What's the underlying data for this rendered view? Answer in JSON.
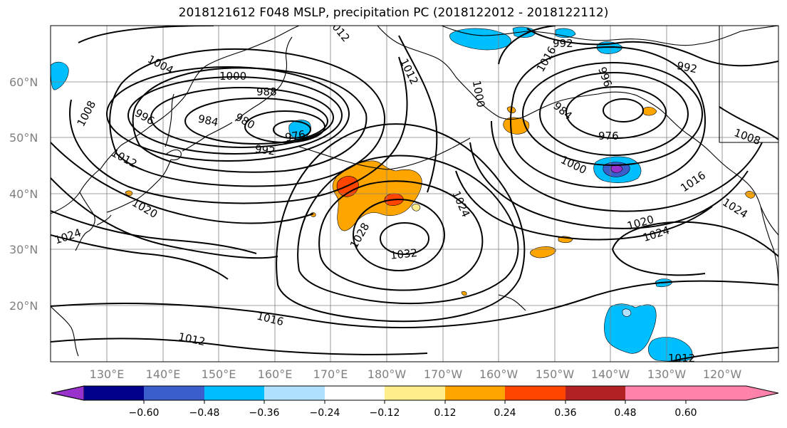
{
  "title": "2018121612 F048 MSLP, precipitation PC (2018122012 - 2018122112)",
  "lat_labels": [
    "60°N",
    "50°N",
    "40°N",
    "30°N",
    "20°N"
  ],
  "lon_labels": [
    "130°E",
    "140°E",
    "150°E",
    "160°E",
    "170°E",
    "180°W",
    "170°W",
    "160°W",
    "150°W",
    "140°W",
    "130°W",
    "120°W"
  ],
  "colorbar": {
    "colors": [
      "#9932cc",
      "#00008b",
      "#3a5fcd",
      "#00bfff",
      "#b0e2ff",
      "#ffffff",
      "#ffec8b",
      "#ffa500",
      "#ff4500",
      "#b22222",
      "#ff82ab"
    ],
    "tick_labels": [
      "−0.60",
      "−0.48",
      "−0.36",
      "−0.24",
      "−0.12",
      "0.12",
      "0.24",
      "0.36",
      "0.48",
      "0.60"
    ]
  },
  "contour_labels": [
    "1004",
    "1000",
    "988",
    "984",
    "980",
    "976",
    "992",
    "996",
    "1008",
    "1012",
    "1020",
    "1024",
    "1028",
    "1032",
    "1016",
    "1012",
    "1012",
    "1016",
    "1024",
    "1020",
    "1024",
    "1000",
    "976",
    "984",
    "992",
    "992",
    "996",
    "1000",
    "1008",
    "1016",
    "1012",
    "1024",
    "1012"
  ]
}
